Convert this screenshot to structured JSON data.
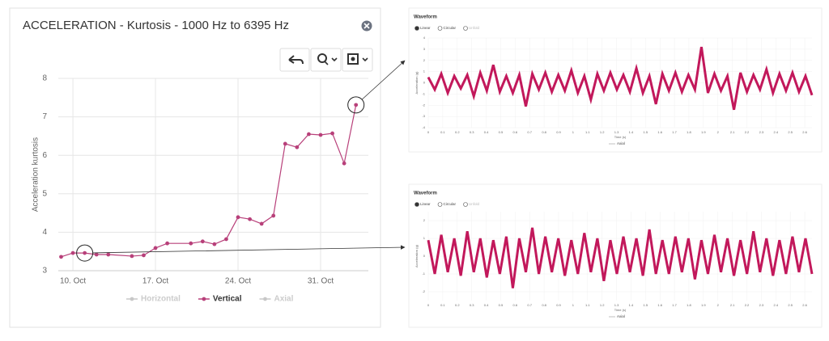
{
  "chart_data": [
    {
      "type": "line",
      "title": "ACCELERATION - Kurtosis - 1000 Hz to 6395 Hz",
      "ylabel": "Acceleration kurtosis",
      "x": [
        9,
        10,
        11,
        12,
        13,
        15,
        16,
        17,
        18,
        20,
        21,
        22,
        23,
        24,
        25,
        26,
        27,
        28,
        29,
        30,
        31,
        32,
        33,
        34
      ],
      "xlim": [
        8.76,
        35.05
      ],
      "xticks": [
        {
          "value": 10,
          "label": "10. Oct"
        },
        {
          "value": 17,
          "label": "17. Oct"
        },
        {
          "value": 24,
          "label": "24. Oct"
        },
        {
          "value": 31,
          "label": "31. Oct"
        }
      ],
      "ylim": [
        3,
        8
      ],
      "yticks": [
        3,
        4,
        5,
        6,
        7,
        8
      ],
      "grid": true,
      "series": [
        {
          "name": "Horizontal",
          "color": "#c8c8c8",
          "visible": false
        },
        {
          "name": "Vertical",
          "color": "#b8407a",
          "visible": true,
          "values": [
            3.36,
            3.46,
            3.46,
            3.42,
            3.42,
            3.38,
            3.4,
            3.59,
            3.71,
            3.71,
            3.76,
            3.69,
            3.82,
            4.39,
            4.34,
            4.22,
            4.43,
            6.3,
            6.21,
            6.55,
            6.53,
            6.57,
            5.79,
            7.31
          ]
        },
        {
          "name": "Axial",
          "color": "#c8c8c8",
          "visible": false
        }
      ]
    },
    {
      "type": "waveform",
      "title": "Waveform",
      "options": [
        "Linear",
        "Circular",
        "Unfold"
      ],
      "xlabel": "Time (s)",
      "ylabel": "Acceleration (g)",
      "xlim": [
        0,
        2.65
      ],
      "xticks": [
        0,
        0.1,
        0.2,
        0.3,
        0.4,
        0.5,
        0.6,
        0.7,
        0.8,
        0.9,
        1,
        1.1,
        1.2,
        1.3,
        1.4,
        1.5,
        1.6,
        1.7,
        1.8,
        1.9,
        2,
        2.1,
        2.2,
        2.3,
        2.4,
        2.5,
        2.6
      ],
      "ylim": [
        -4,
        4
      ],
      "yticks": [
        -4,
        -3,
        -2,
        -1,
        0,
        1,
        2,
        3,
        4
      ],
      "series": [
        {
          "name": "Axial",
          "color": "#c2185b",
          "values": [
            0.5,
            -0.6,
            0.8,
            -0.9,
            0.6,
            -0.5,
            0.7,
            -1.2,
            0.9,
            -0.7,
            1.6,
            -0.8,
            0.6,
            -0.9,
            0.7,
            -2.1,
            0.8,
            -0.6,
            0.9,
            -0.8,
            0.7,
            -0.7,
            1.1,
            -0.9,
            0.6,
            -1.5,
            0.8,
            -0.7,
            0.9,
            -0.6,
            0.7,
            -0.8,
            1.3,
            -0.9,
            0.6,
            -1.9,
            0.8,
            -0.7,
            0.9,
            -0.8,
            0.7,
            -0.6,
            3.2,
            -0.9,
            0.8,
            -0.7,
            0.6,
            -2.4,
            0.9,
            -0.8,
            0.7,
            -0.6,
            1.2,
            -0.9,
            0.8,
            -0.7,
            0.9,
            -0.8,
            0.6,
            -1.1
          ]
        }
      ]
    },
    {
      "type": "waveform",
      "title": "Waveform",
      "options": [
        "Linear",
        "Circular",
        "Unfold"
      ],
      "xlabel": "Time (s)",
      "ylabel": "Acceleration (g)",
      "xlim": [
        0,
        2.65
      ],
      "xticks": [
        0,
        0.1,
        0.2,
        0.3,
        0.4,
        0.5,
        0.6,
        0.7,
        0.8,
        0.9,
        1,
        1.1,
        1.2,
        1.3,
        1.4,
        1.5,
        1.6,
        1.7,
        1.8,
        1.9,
        2,
        2.1,
        2.2,
        2.3,
        2.4,
        2.5,
        2.6
      ],
      "ylim": [
        -2.5,
        2.5
      ],
      "yticks": [
        -2,
        -1,
        0,
        1,
        2
      ],
      "series": [
        {
          "name": "Axial",
          "color": "#c2185b",
          "values": [
            0.9,
            -1.0,
            1.2,
            -0.9,
            1.0,
            -1.1,
            1.4,
            -0.9,
            1.0,
            -1.2,
            0.9,
            -1.0,
            1.1,
            -1.8,
            1.0,
            -0.9,
            1.6,
            -1.0,
            1.1,
            -0.9,
            1.0,
            -1.1,
            0.9,
            -1.0,
            1.3,
            -0.9,
            1.0,
            -1.4,
            0.9,
            -1.0,
            1.1,
            -0.9,
            1.0,
            -1.1,
            1.5,
            -1.0,
            0.9,
            -1.0,
            1.1,
            -0.9,
            1.0,
            -1.3,
            0.9,
            -1.0,
            1.2,
            -0.9,
            1.0,
            -1.1,
            0.9,
            -1.0,
            1.4,
            -0.9,
            1.0,
            -1.1,
            0.9,
            -1.0,
            1.1,
            -0.9,
            1.0,
            -1.0
          ]
        }
      ]
    }
  ]
}
